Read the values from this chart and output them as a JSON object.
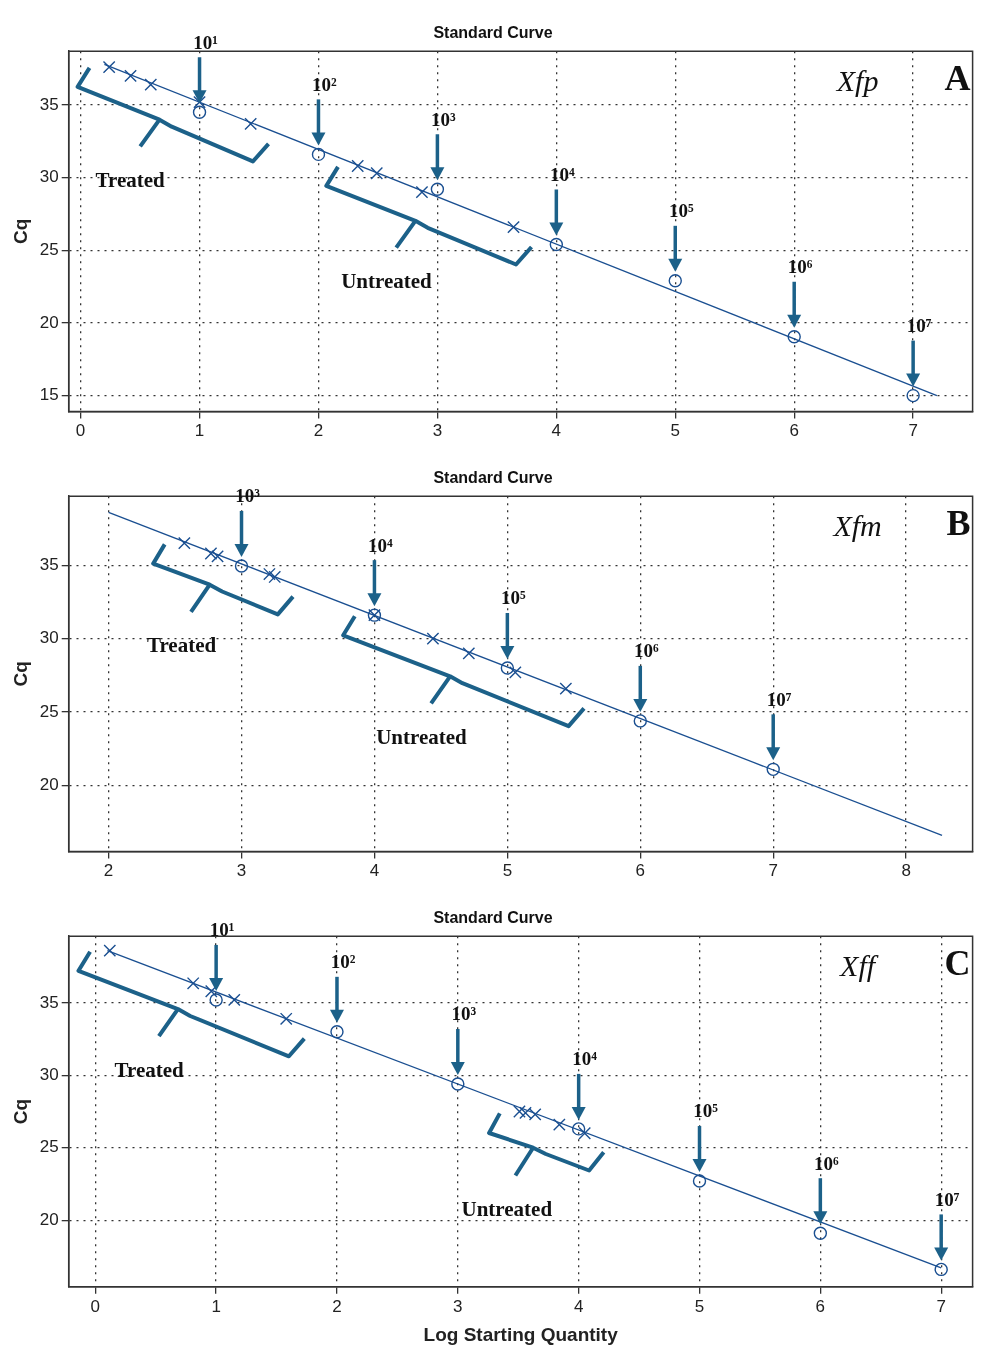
{
  "chart_data": [
    {
      "type": "scatter",
      "title": "Standard Curve",
      "ylabel": "Cq",
      "xlim": [
        -0.1,
        7.5
      ],
      "ylim": [
        13.9,
        38.7
      ],
      "xticks": [
        0,
        1,
        2,
        3,
        4,
        5,
        6,
        7
      ],
      "yticks": [
        15,
        20,
        25,
        30,
        35
      ],
      "grid": true,
      "series": [
        {
          "color": "#1a4f91",
          "marker": "circle",
          "x": [
            1,
            2,
            3,
            4,
            5,
            6,
            7
          ],
          "values": [
            34.5,
            31.6,
            29.2,
            25.4,
            22.9,
            19.05,
            15.0
          ]
        },
        {
          "color": "#1a4f91",
          "marker": "cross",
          "x": [
            0.24,
            0.42,
            0.59,
            1.0,
            1.43
          ],
          "values": [
            37.6,
            37.0,
            36.4,
            35.2,
            33.7
          ]
        },
        {
          "color": "#1a4f91",
          "marker": "cross",
          "x": [
            2.33,
            2.49,
            2.87,
            3.64
          ],
          "values": [
            30.8,
            30.3,
            29.0,
            26.6
          ]
        },
        {
          "type": "line",
          "color": "#1a4f91",
          "marker": "none",
          "x": [
            0.2,
            7.2
          ],
          "values": [
            37.8,
            15.0
          ]
        }
      ],
      "annotations": [
        "10¹",
        "10²",
        "10³",
        "10⁴",
        "10⁵",
        "10⁶",
        "10⁷",
        "Treated",
        "Untreated",
        "Xfp",
        "A"
      ]
    },
    {
      "type": "scatter",
      "title": "Standard Curve",
      "ylabel": "Cq",
      "xlim": [
        1.7,
        8.5
      ],
      "ylim": [
        15.5,
        39.7
      ],
      "xticks": [
        2,
        3,
        4,
        5,
        6,
        7,
        8
      ],
      "yticks": [
        20,
        25,
        30,
        35
      ],
      "grid": true,
      "series": [
        {
          "color": "#1a4f91",
          "marker": "circle",
          "x": [
            3,
            4,
            5,
            6,
            7
          ],
          "values": [
            34.95,
            31.6,
            28.0,
            24.4,
            21.1
          ]
        },
        {
          "color": "#1a4f91",
          "marker": "cross",
          "x": [
            2.57,
            2.77,
            2.82,
            3.21,
            3.25
          ],
          "values": [
            36.5,
            35.8,
            35.6,
            34.4,
            34.2
          ]
        },
        {
          "color": "#1a4f91",
          "marker": "cross",
          "x": [
            4.0,
            4.44,
            4.71,
            5.06,
            5.44
          ],
          "values": [
            31.6,
            30.0,
            29.0,
            27.7,
            26.6
          ]
        },
        {
          "type": "line",
          "color": "#1a4f91",
          "marker": "none",
          "x": [
            2.0,
            8.27
          ],
          "values": [
            38.6,
            16.6
          ]
        }
      ],
      "annotations": [
        "10³",
        "10⁴",
        "10⁵",
        "10⁶",
        "10⁷",
        "Treated",
        "Untreated",
        "Xfm",
        "B"
      ]
    },
    {
      "type": "scatter",
      "title": "Standard Curve",
      "xlabel": "Log Starting Quantity",
      "ylabel": "Cq",
      "xlim": [
        -0.22,
        7.26
      ],
      "ylim": [
        15.4,
        39.6
      ],
      "xticks": [
        0,
        1,
        2,
        3,
        4,
        5,
        6,
        7
      ],
      "yticks": [
        20,
        25,
        30,
        35
      ],
      "grid": true,
      "series": [
        {
          "color": "#1a4f91",
          "marker": "circle",
          "x": [
            1,
            2,
            3,
            4,
            5,
            6,
            7
          ],
          "values": [
            35.2,
            33.0,
            29.4,
            26.3,
            22.7,
            19.1,
            16.6
          ]
        },
        {
          "color": "#1a4f91",
          "marker": "cross",
          "x": [
            0.12,
            0.81,
            0.96,
            1.15,
            1.58
          ],
          "values": [
            38.6,
            36.35,
            35.8,
            35.2,
            33.9
          ]
        },
        {
          "color": "#1a4f91",
          "marker": "cross",
          "x": [
            3.51,
            3.56,
            3.64,
            3.84,
            4.05
          ],
          "values": [
            27.5,
            27.4,
            27.3,
            26.6,
            26.0
          ]
        },
        {
          "type": "line",
          "color": "#1a4f91",
          "marker": "none",
          "x": [
            0.1,
            7.0
          ],
          "values": [
            38.6,
            16.7
          ]
        }
      ],
      "annotations": [
        "10¹",
        "10²",
        "10³",
        "10⁴",
        "10⁵",
        "10⁶",
        "10⁷",
        "Treated",
        "Untreated",
        "Xff",
        "C"
      ]
    }
  ]
}
